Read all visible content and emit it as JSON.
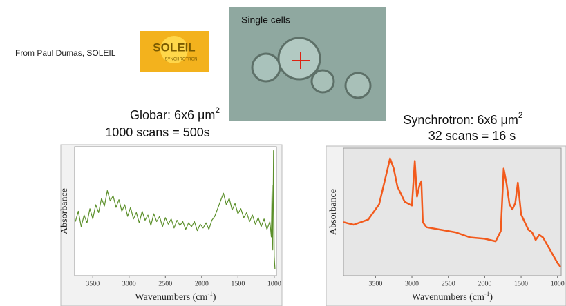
{
  "header": {
    "credit": "From Paul Dumas, SOLEIL",
    "logo": "SOLEIL",
    "logo_sub": "SYNCHROTRON",
    "photo_label": "Single cells"
  },
  "chart_data": [
    {
      "type": "line",
      "title": "Globar: 6x6 μm",
      "title_sup": "2",
      "subtitle": "1000 scans = 500s",
      "x_label": "Wavenumbers (cm",
      "x_label_sup": "-1",
      "x_label_end": ")",
      "y_label": "Absorbance",
      "color": "#5b8f2a",
      "xlim": [
        3750,
        970
      ],
      "ylim": [
        0,
        1
      ],
      "xticks": [
        3500,
        3000,
        2500,
        2000,
        1500,
        1000
      ],
      "x": [
        3740,
        3700,
        3660,
        3620,
        3580,
        3540,
        3500,
        3460,
        3420,
        3380,
        3340,
        3300,
        3260,
        3220,
        3180,
        3140,
        3100,
        3060,
        3020,
        2980,
        2940,
        2900,
        2860,
        2820,
        2780,
        2740,
        2700,
        2660,
        2620,
        2580,
        2540,
        2500,
        2460,
        2420,
        2380,
        2340,
        2300,
        2260,
        2220,
        2180,
        2140,
        2100,
        2060,
        2020,
        1980,
        1940,
        1900,
        1860,
        1820,
        1780,
        1740,
        1700,
        1660,
        1620,
        1580,
        1540,
        1500,
        1460,
        1420,
        1380,
        1340,
        1300,
        1260,
        1220,
        1180,
        1140,
        1100,
        1060,
        1040,
        1030,
        1020,
        1010,
        1000,
        990
      ],
      "values": [
        0.42,
        0.5,
        0.38,
        0.47,
        0.41,
        0.52,
        0.44,
        0.55,
        0.49,
        0.6,
        0.54,
        0.66,
        0.58,
        0.62,
        0.53,
        0.59,
        0.5,
        0.55,
        0.46,
        0.53,
        0.44,
        0.49,
        0.41,
        0.5,
        0.43,
        0.47,
        0.39,
        0.48,
        0.42,
        0.46,
        0.38,
        0.45,
        0.4,
        0.44,
        0.37,
        0.43,
        0.39,
        0.42,
        0.36,
        0.41,
        0.38,
        0.42,
        0.35,
        0.4,
        0.37,
        0.41,
        0.36,
        0.43,
        0.46,
        0.52,
        0.58,
        0.64,
        0.55,
        0.6,
        0.51,
        0.56,
        0.48,
        0.52,
        0.45,
        0.49,
        0.42,
        0.47,
        0.4,
        0.45,
        0.38,
        0.44,
        0.36,
        0.42,
        0.3,
        0.7,
        0.2,
        0.97,
        0.15,
        0.05
      ]
    },
    {
      "type": "line",
      "title": "Synchrotron: 6x6 μm",
      "title_sup": "2",
      "subtitle": "32 scans = 16 s",
      "x_label": "Wavenumbers (cm",
      "x_label_sup": "-1",
      "x_label_end": ")",
      "y_label": "Absorbance",
      "color": "#f25a1c",
      "xlim": [
        3940,
        950
      ],
      "ylim": [
        0,
        1
      ],
      "xticks": [
        3500,
        3000,
        2500,
        2000,
        1500,
        1000
      ],
      "x": [
        3940,
        3800,
        3600,
        3450,
        3350,
        3300,
        3250,
        3200,
        3100,
        3000,
        2960,
        2930,
        2900,
        2870,
        2850,
        2800,
        2600,
        2400,
        2200,
        2000,
        1850,
        1780,
        1740,
        1700,
        1660,
        1620,
        1580,
        1545,
        1500,
        1450,
        1400,
        1350,
        1300,
        1250,
        1200,
        1100,
        1000,
        960
      ],
      "values": [
        0.42,
        0.4,
        0.44,
        0.56,
        0.8,
        0.92,
        0.84,
        0.7,
        0.58,
        0.55,
        0.9,
        0.62,
        0.7,
        0.74,
        0.42,
        0.38,
        0.36,
        0.34,
        0.3,
        0.29,
        0.27,
        0.35,
        0.84,
        0.72,
        0.56,
        0.52,
        0.57,
        0.73,
        0.48,
        0.42,
        0.36,
        0.34,
        0.28,
        0.32,
        0.3,
        0.2,
        0.1,
        0.07
      ]
    }
  ]
}
